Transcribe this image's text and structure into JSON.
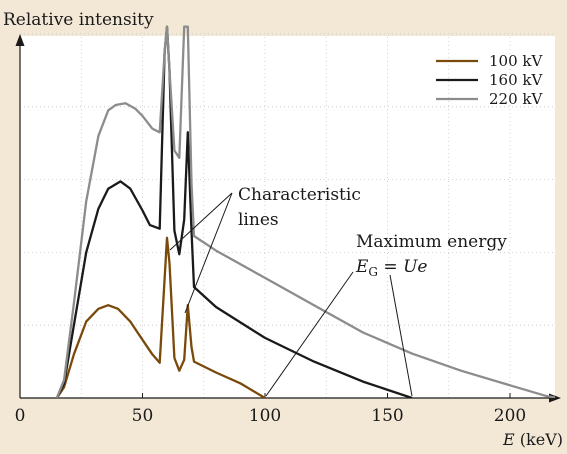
{
  "chart_data": {
    "type": "line",
    "ylabel": "Relative intensity",
    "xlabel_symbol": "E",
    "xlabel_unit": " (keV)",
    "xlim": [
      0,
      220
    ],
    "ylim": [
      0,
      10
    ],
    "xticks": [
      0,
      50,
      100,
      150,
      200
    ],
    "grid": true,
    "legend_position": "top-right",
    "series": [
      {
        "name": "100 kV",
        "color": "#7a4a0c",
        "points": [
          [
            15,
            0
          ],
          [
            18,
            0.3
          ],
          [
            22,
            1.2
          ],
          [
            27,
            2.1
          ],
          [
            32,
            2.45
          ],
          [
            36,
            2.55
          ],
          [
            40,
            2.45
          ],
          [
            45,
            2.1
          ],
          [
            50,
            1.6
          ],
          [
            54,
            1.2
          ],
          [
            57,
            0.97
          ],
          [
            60,
            4.4
          ],
          [
            61,
            3.7
          ],
          [
            63,
            1.1
          ],
          [
            65,
            0.75
          ],
          [
            67,
            1.05
          ],
          [
            68.5,
            2.55
          ],
          [
            70,
            1.4
          ],
          [
            71,
            1.0
          ],
          [
            80,
            0.7
          ],
          [
            90,
            0.4
          ],
          [
            100,
            0
          ]
        ]
      },
      {
        "name": "160 kV",
        "color": "#1a1a1a",
        "points": [
          [
            15,
            0
          ],
          [
            18,
            0.4
          ],
          [
            22,
            2.0
          ],
          [
            27,
            4.0
          ],
          [
            32,
            5.2
          ],
          [
            36,
            5.75
          ],
          [
            41,
            5.95
          ],
          [
            45,
            5.75
          ],
          [
            50,
            5.15
          ],
          [
            53,
            4.75
          ],
          [
            57,
            4.65
          ],
          [
            59,
            9.5
          ],
          [
            60,
            10.2
          ],
          [
            61,
            9.0
          ],
          [
            63,
            4.6
          ],
          [
            65,
            3.95
          ],
          [
            67,
            4.9
          ],
          [
            68.5,
            7.3
          ],
          [
            70,
            4.6
          ],
          [
            71,
            3.05
          ],
          [
            80,
            2.5
          ],
          [
            100,
            1.65
          ],
          [
            120,
            1.0
          ],
          [
            140,
            0.45
          ],
          [
            160,
            0
          ]
        ]
      },
      {
        "name": "220 kV",
        "color": "#8c8c8c",
        "points": [
          [
            15,
            0
          ],
          [
            18,
            0.5
          ],
          [
            22,
            2.6
          ],
          [
            27,
            5.4
          ],
          [
            32,
            7.2
          ],
          [
            36,
            7.9
          ],
          [
            39,
            8.05
          ],
          [
            43,
            8.1
          ],
          [
            47,
            7.95
          ],
          [
            50,
            7.75
          ],
          [
            54,
            7.4
          ],
          [
            57,
            7.3
          ],
          [
            59,
            9.5
          ],
          [
            60,
            10.2
          ],
          [
            61,
            9.0
          ],
          [
            63,
            6.8
          ],
          [
            65,
            6.6
          ],
          [
            67,
            10.2
          ],
          [
            68.5,
            10.2
          ],
          [
            70,
            5.9
          ],
          [
            71,
            4.45
          ],
          [
            80,
            4.05
          ],
          [
            100,
            3.3
          ],
          [
            120,
            2.55
          ],
          [
            140,
            1.8
          ],
          [
            160,
            1.22
          ],
          [
            180,
            0.75
          ],
          [
            200,
            0.35
          ],
          [
            215,
            0.05
          ],
          [
            220,
            0
          ]
        ]
      }
    ],
    "annotations": {
      "characteristic_line1": "Characteristic",
      "characteristic_line2": "lines",
      "maxenergy_line1": "Maximum energy",
      "formula_e": "E",
      "formula_g": "G",
      "formula_eq": " = ",
      "formula_ue": "Ue"
    }
  }
}
